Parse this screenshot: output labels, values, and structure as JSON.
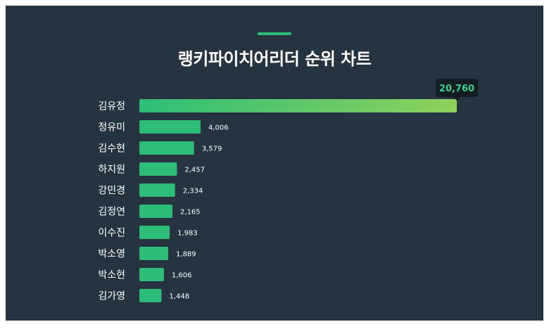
{
  "title": "랭키파이치어리더 순위 차트",
  "colors": {
    "background": "#253440",
    "bar": "#2dbd78",
    "bar_gradient_end": "#8fd15c",
    "tooltip_bg": "#141d24",
    "tooltip_text": "#3dd08a"
  },
  "chart_data": {
    "type": "bar",
    "orientation": "horizontal",
    "title": "랭키파이치어리더 순위 차트",
    "categories": [
      "김유정",
      "정유미",
      "김수현",
      "하지원",
      "강민경",
      "김정연",
      "이수진",
      "박소영",
      "박소현",
      "김가영"
    ],
    "values": [
      20760,
      4006,
      3579,
      2457,
      2334,
      2165,
      1983,
      1889,
      1606,
      1448
    ],
    "value_labels": [
      "20,760",
      "4,006",
      "3,579",
      "2,457",
      "2,334",
      "2,165",
      "1,983",
      "1,889",
      "1,606",
      "1,448"
    ],
    "xlim": [
      0,
      20760
    ],
    "grid": false,
    "legend": "none"
  }
}
